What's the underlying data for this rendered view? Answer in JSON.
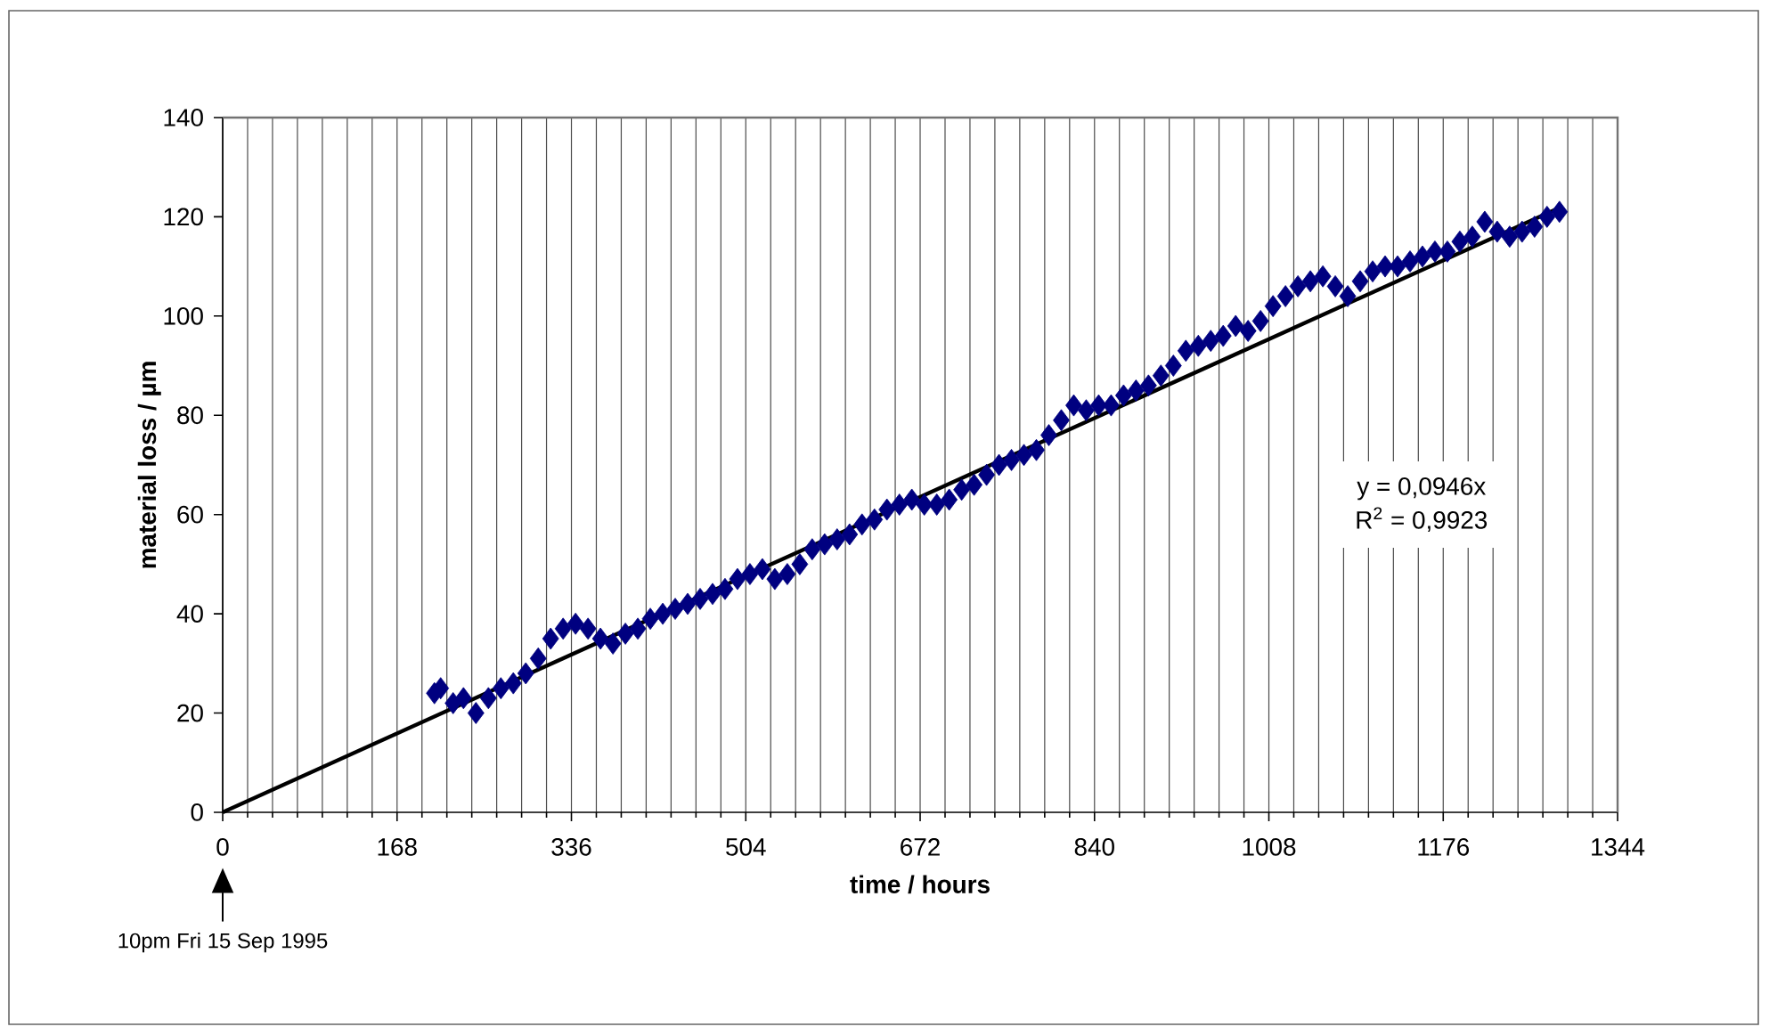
{
  "chart_data": {
    "type": "scatter",
    "xlabel": "time / hours",
    "ylabel": "material loss / µm",
    "xlim": [
      0,
      1344
    ],
    "xticks": [
      0,
      168,
      336,
      504,
      672,
      840,
      1008,
      1176,
      1344
    ],
    "ylim": [
      0,
      140
    ],
    "yticks": [
      0,
      20,
      40,
      60,
      80,
      100,
      120,
      140
    ],
    "grid": "x",
    "marker": "diamond",
    "annotations": [
      "y = 0,0946x",
      "R$^{2}$ = 0,9923",
      "10pm Fri 15 Sep 1995"
    ],
    "series": [
      {
        "color": "#000080",
        "x": [
          204,
          210,
          222,
          232,
          244,
          256,
          268,
          280,
          292,
          304,
          316,
          328,
          340,
          352,
          364,
          376,
          388,
          400,
          412,
          424,
          436,
          448,
          460,
          472,
          484,
          496,
          508,
          520,
          532,
          544,
          556,
          568,
          580,
          592,
          604,
          616,
          628,
          640,
          652,
          664,
          676,
          688,
          700,
          712,
          724,
          736,
          748,
          760,
          772,
          784,
          796,
          808,
          820,
          832,
          844,
          856,
          868,
          880,
          892,
          904,
          916,
          928,
          940,
          952,
          964,
          976,
          988,
          1000,
          1012,
          1024,
          1036,
          1048,
          1060,
          1072,
          1084,
          1096,
          1108,
          1120,
          1132,
          1144,
          1156,
          1168,
          1180,
          1192,
          1204,
          1216,
          1228,
          1240,
          1252,
          1264,
          1276,
          1288
        ],
        "values": [
          24,
          25,
          22,
          23,
          20,
          23,
          25,
          26,
          28,
          31,
          35,
          37,
          38,
          37,
          35,
          34,
          36,
          37,
          39,
          40,
          41,
          42,
          43,
          44,
          45,
          47,
          48,
          49,
          47,
          48,
          50,
          53,
          54,
          55,
          56,
          58,
          59,
          61,
          62,
          63,
          62,
          62,
          63,
          65,
          66,
          68,
          70,
          71,
          72,
          73,
          76,
          79,
          82,
          81,
          82,
          82,
          84,
          85,
          86,
          88,
          90,
          93,
          94,
          95,
          96,
          98,
          97,
          99,
          102,
          104,
          106,
          107,
          108,
          106,
          104,
          107,
          109,
          110,
          110,
          111,
          112,
          113,
          113,
          115,
          116,
          119,
          117,
          116,
          117,
          118,
          120,
          121
        ]
      },
      {
        "type": "line",
        "color": "#000000",
        "marker": "none",
        "line_style": "solid",
        "x": [
          0,
          1290
        ],
        "values": [
          0,
          122
        ]
      }
    ]
  }
}
